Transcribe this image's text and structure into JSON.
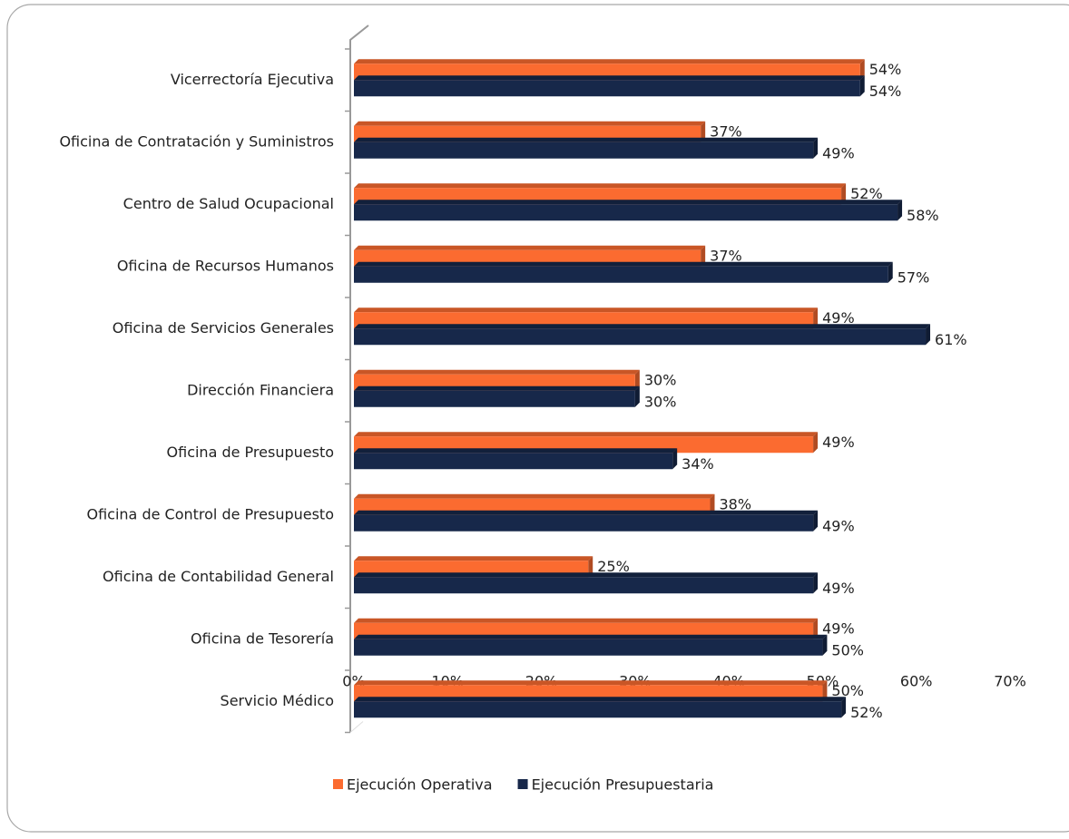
{
  "chart_data": {
    "type": "bar",
    "orientation": "horizontal",
    "categories": [
      "Vicerrectoría Ejecutiva",
      "Oficina de Contratación y Suministros",
      "Centro de Salud Ocupacional",
      "Oficina de Recursos Humanos",
      "Oficina de Servicios Generales",
      "Dirección Financiera",
      "Oficina de Presupuesto",
      "Oficina de Control de Presupuesto",
      "Oficina de Contabilidad General",
      "Oficina de Tesorería",
      "Servicio Médico"
    ],
    "series": [
      {
        "name": "Ejecución Operativa",
        "color": "#fb6b30",
        "values": [
          54,
          37,
          52,
          37,
          49,
          30,
          49,
          38,
          25,
          49,
          50
        ],
        "value_labels": [
          "54%",
          "37%",
          "52%",
          "37%",
          "49%",
          "30%",
          "49%",
          "38%",
          "25%",
          "49%",
          "50%"
        ]
      },
      {
        "name": "Ejecución Presupuestaria",
        "color": "#17284a",
        "values": [
          54,
          49,
          58,
          57,
          61,
          30,
          34,
          49,
          49,
          50,
          52
        ],
        "value_labels": [
          "54%",
          "49%",
          "58%",
          "57%",
          "61%",
          "30%",
          "34%",
          "49%",
          "49%",
          "50%",
          "52%"
        ]
      }
    ],
    "xlim": [
      0,
      70
    ],
    "xticks": [
      {
        "value": 0,
        "label": "0%"
      },
      {
        "value": 10,
        "label": "10%"
      },
      {
        "value": 20,
        "label": "20%"
      },
      {
        "value": 30,
        "label": "30%"
      },
      {
        "value": 40,
        "label": "40%"
      },
      {
        "value": 50,
        "label": "50%"
      },
      {
        "value": 60,
        "label": "60%"
      },
      {
        "value": 70,
        "label": "70%"
      }
    ],
    "legend": "bottom"
  }
}
